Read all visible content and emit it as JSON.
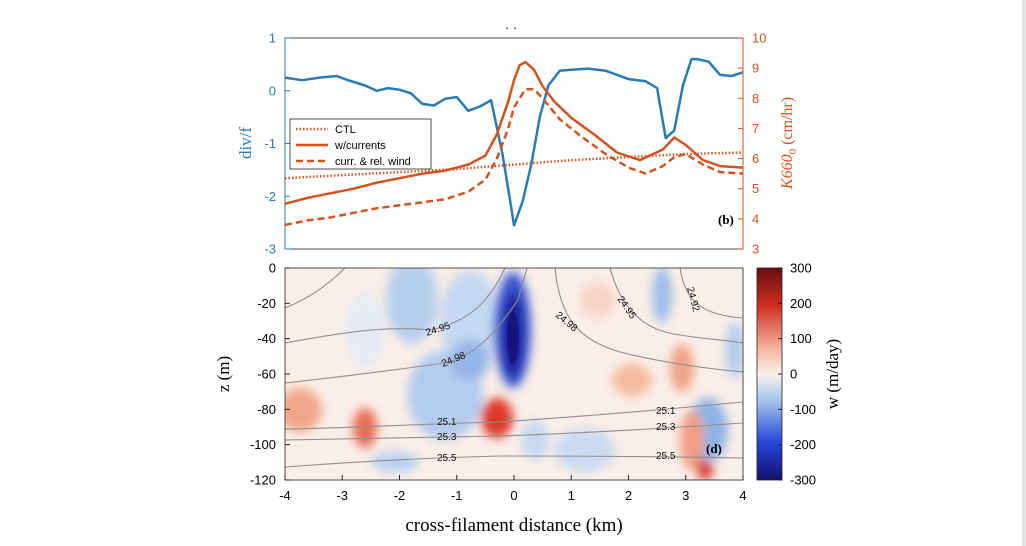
{
  "chart_data": [
    {
      "type": "line",
      "panel_label": "(b)",
      "xlim": [
        -4,
        4
      ],
      "y_left": {
        "label": "div/f",
        "ylim": [
          -3,
          1
        ],
        "ticks": [
          1,
          0,
          -1,
          -2,
          -3
        ],
        "color": "#2a7ab8"
      },
      "y_right": {
        "label": "K660",
        "label_sub": "0",
        "label_unit": "(cm/hr)",
        "ylim": [
          3,
          10
        ],
        "ticks": [
          10,
          9,
          8,
          7,
          6,
          5,
          4,
          3
        ],
        "color": "#d4521f"
      },
      "legend": {
        "placement": "left",
        "entries": [
          "CTL",
          "w/currents",
          "curr. & rel. wind"
        ]
      },
      "series": [
        {
          "name": "div/f",
          "axis": "left",
          "color": "#2a7ab8",
          "style": "solid",
          "x": [
            -4,
            -3.7,
            -3.4,
            -3.1,
            -2.9,
            -2.6,
            -2.4,
            -2.2,
            -2.0,
            -1.8,
            -1.6,
            -1.4,
            -1.2,
            -1.0,
            -0.8,
            -0.6,
            -0.4,
            -0.2,
            -0.05,
            0.0,
            0.15,
            0.3,
            0.45,
            0.6,
            0.8,
            1.0,
            1.3,
            1.6,
            2.0,
            2.3,
            2.5,
            2.65,
            2.8,
            2.95,
            3.1,
            3.2,
            3.4,
            3.6,
            3.8,
            4.0
          ],
          "y": [
            0.25,
            0.2,
            0.25,
            0.28,
            0.2,
            0.1,
            0.0,
            0.05,
            0.02,
            -0.05,
            -0.25,
            -0.28,
            -0.15,
            -0.12,
            -0.38,
            -0.3,
            -0.18,
            -1.2,
            -2.2,
            -2.55,
            -2.1,
            -1.4,
            -0.5,
            0.1,
            0.38,
            0.4,
            0.42,
            0.38,
            0.22,
            0.18,
            0.05,
            -0.9,
            -0.75,
            0.1,
            0.6,
            0.6,
            0.55,
            0.3,
            0.28,
            0.35
          ]
        },
        {
          "name": "CTL",
          "axis": "right",
          "color": "#d4521f",
          "style": "dotted",
          "x": [
            -4,
            -3,
            -2,
            -1,
            0,
            1,
            2,
            3,
            4
          ],
          "y": [
            5.35,
            5.45,
            5.55,
            5.65,
            5.8,
            5.95,
            6.05,
            6.15,
            6.2
          ]
        },
        {
          "name": "w/currents",
          "axis": "right",
          "color": "#d4521f",
          "style": "solid",
          "x": [
            -4,
            -3.6,
            -3.2,
            -2.8,
            -2.4,
            -2.0,
            -1.6,
            -1.2,
            -0.8,
            -0.5,
            -0.3,
            -0.1,
            0.0,
            0.1,
            0.2,
            0.35,
            0.5,
            0.7,
            1.0,
            1.4,
            1.8,
            2.2,
            2.6,
            2.8,
            3.0,
            3.3,
            3.6,
            4.0
          ],
          "y": [
            4.5,
            4.7,
            4.85,
            5.0,
            5.2,
            5.35,
            5.5,
            5.6,
            5.8,
            6.1,
            6.8,
            7.9,
            8.6,
            9.1,
            9.2,
            8.95,
            8.4,
            7.9,
            7.35,
            6.8,
            6.2,
            5.95,
            6.3,
            6.7,
            6.45,
            5.95,
            5.75,
            5.7
          ]
        },
        {
          "name": "curr. & rel. wind",
          "axis": "right",
          "color": "#d4521f",
          "style": "dashed",
          "x": [
            -4,
            -3.6,
            -3.2,
            -2.8,
            -2.4,
            -2.0,
            -1.6,
            -1.2,
            -0.8,
            -0.5,
            -0.3,
            -0.1,
            0.0,
            0.2,
            0.35,
            0.5,
            0.8,
            1.2,
            1.6,
            2.0,
            2.3,
            2.6,
            2.8,
            3.0,
            3.3,
            3.6,
            4.0
          ],
          "y": [
            3.8,
            3.95,
            4.05,
            4.2,
            4.35,
            4.45,
            4.55,
            4.65,
            4.9,
            5.3,
            6.0,
            7.0,
            7.7,
            8.3,
            8.3,
            8.0,
            7.3,
            6.7,
            6.15,
            5.7,
            5.5,
            5.75,
            6.05,
            6.15,
            5.8,
            5.55,
            5.5
          ]
        }
      ]
    },
    {
      "type": "heatmap",
      "panel_label": "(d)",
      "xlabel": "cross-filament distance (km)",
      "xlim": [
        -4,
        4
      ],
      "xticks": [
        -4,
        -3,
        -2,
        -1,
        0,
        1,
        2,
        3,
        4
      ],
      "ylabel": "z (m)",
      "ylim": [
        -120,
        0
      ],
      "yticks": [
        0,
        -20,
        -40,
        -60,
        -80,
        -100,
        -120
      ],
      "colorbar": {
        "label": "w (m/day)",
        "range": [
          -300,
          300
        ],
        "ticks": [
          300,
          200,
          100,
          0,
          -100,
          -200,
          -300
        ]
      },
      "contour_labels": [
        "24.95",
        "24.98",
        "24.98",
        "24.95",
        "24.92",
        "25.1",
        "25.1",
        "25.3",
        "25.3",
        "25.5",
        "25.5"
      ]
    }
  ]
}
